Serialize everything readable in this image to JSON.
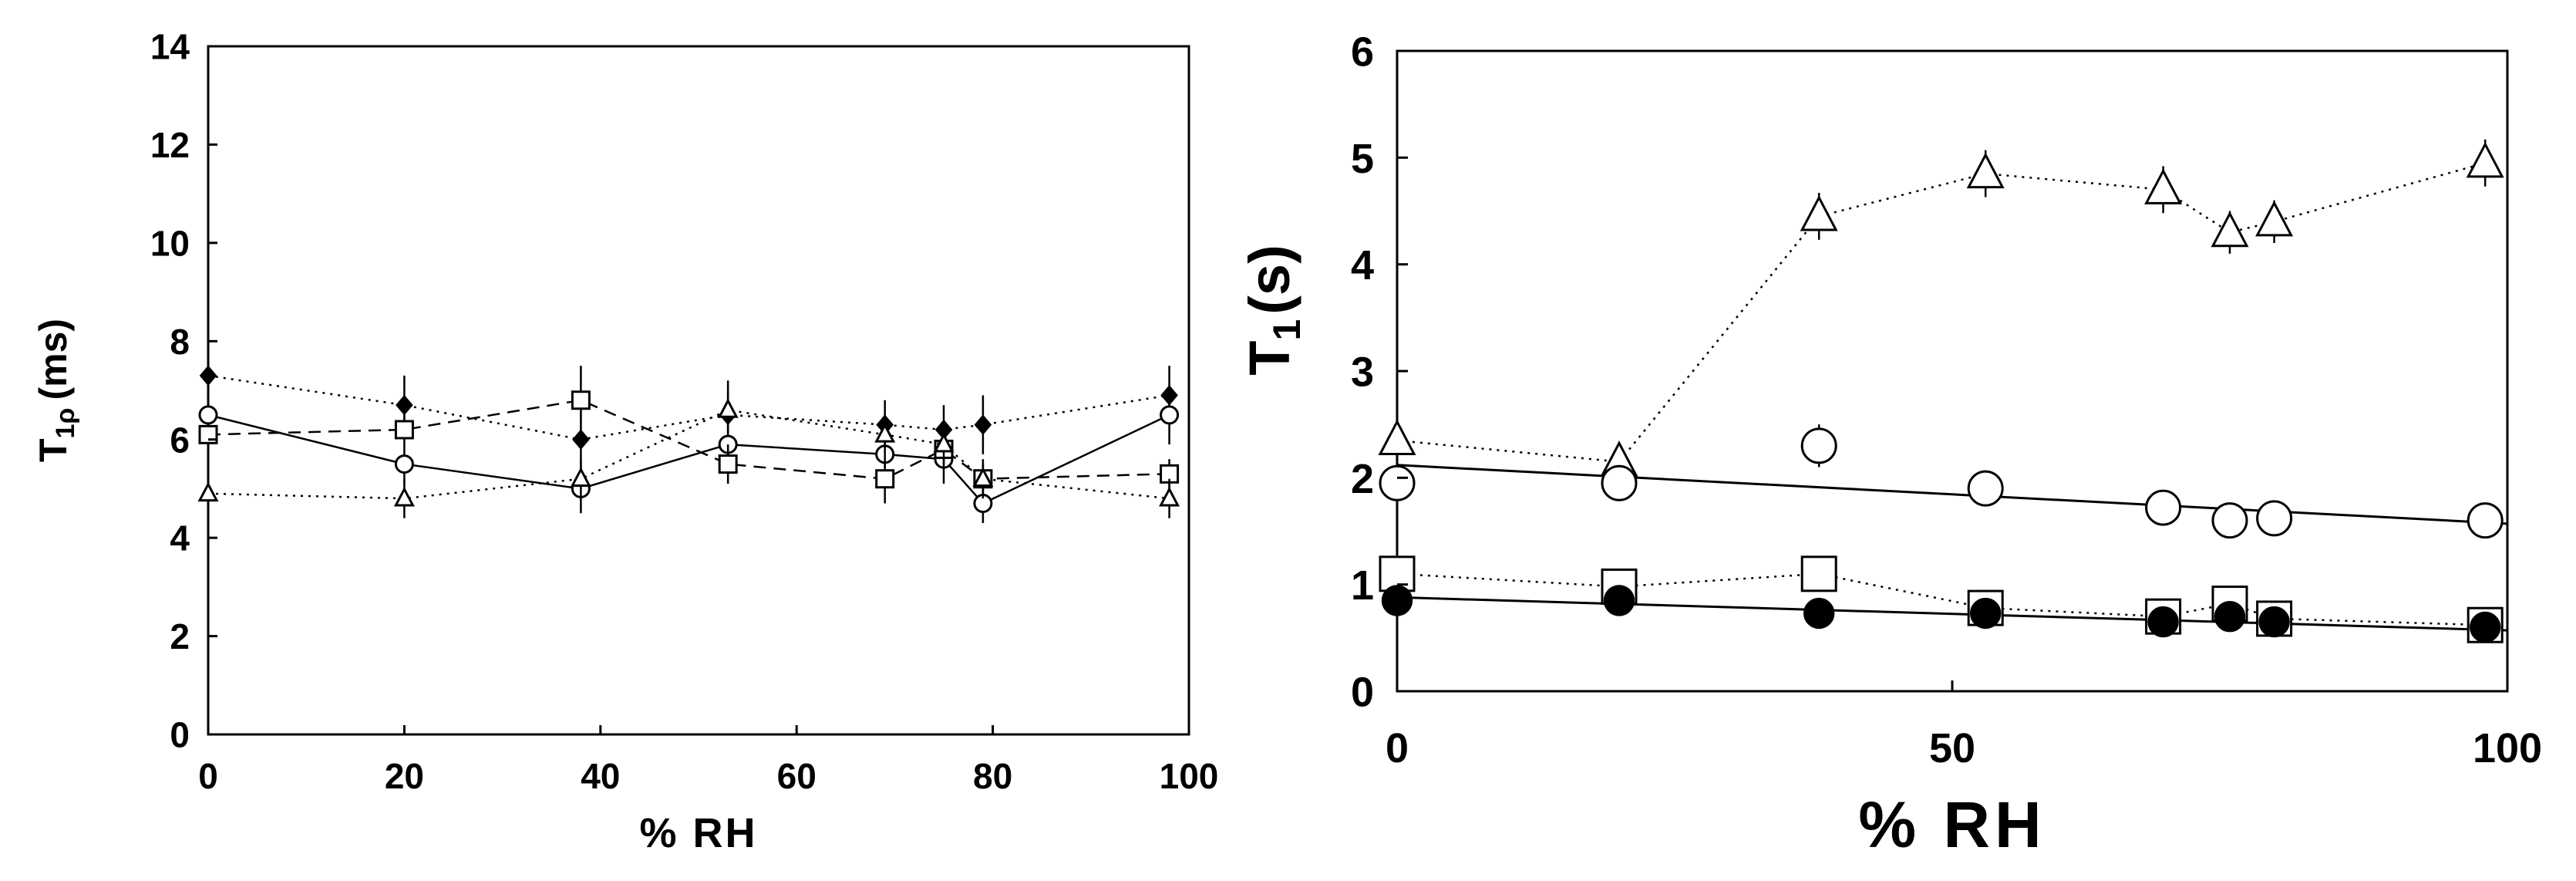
{
  "chart_data": [
    {
      "type": "line",
      "xlabel": "% RH",
      "ylabel": {
        "main": "T",
        "sub": "1ρ",
        "unit": "(ms)"
      },
      "xlim": [
        0,
        100
      ],
      "ylim": [
        0,
        14
      ],
      "xticks": [
        "0",
        "20",
        "40",
        "60",
        "80",
        "100"
      ],
      "yticks": [
        "0",
        "2",
        "4",
        "6",
        "8",
        "10",
        "12",
        "14"
      ],
      "grid": false,
      "series": [
        {
          "marker": "filled-diamond",
          "line": "dotted",
          "x": [
            0,
            20,
            38,
            53,
            69,
            75,
            79,
            98
          ],
          "y": [
            7.3,
            6.7,
            6.0,
            6.5,
            6.3,
            6.2,
            6.3,
            6.9
          ],
          "err": [
            0,
            0.6,
            0.6,
            0.7,
            0.5,
            0.5,
            0.6,
            0.6
          ]
        },
        {
          "marker": "open-circle",
          "line": "solid",
          "x": [
            0,
            20,
            38,
            53,
            69,
            75,
            79,
            98
          ],
          "y": [
            6.5,
            5.5,
            5.0,
            5.9,
            5.7,
            5.6,
            4.7,
            6.5
          ],
          "err": [
            0,
            0.4,
            0.5,
            0.5,
            0.5,
            0.5,
            0.4,
            0.6
          ]
        },
        {
          "marker": "open-square",
          "line": "dashed",
          "x": [
            0,
            20,
            38,
            53,
            69,
            75,
            79,
            98
          ],
          "y": [
            6.1,
            6.2,
            6.8,
            5.5,
            5.2,
            5.8,
            5.2,
            5.3
          ],
          "err": [
            0,
            0.3,
            0.7,
            0.4,
            0.5,
            0.4,
            0.3,
            0.3
          ]
        },
        {
          "marker": "open-triangle",
          "line": "dotted",
          "x": [
            0,
            20,
            38,
            53,
            69,
            75,
            79,
            98
          ],
          "y": [
            4.9,
            4.8,
            5.2,
            6.6,
            6.1,
            5.9,
            5.2,
            4.8
          ],
          "err": [
            0,
            0.4,
            0.4,
            0.4,
            0.4,
            0.4,
            0.4,
            0.4
          ]
        }
      ]
    },
    {
      "type": "scatter",
      "xlabel": "% RH",
      "ylabel": {
        "main": "T",
        "sub": "1",
        "unit": "(s)"
      },
      "xlim": [
        0,
        100
      ],
      "ylim": [
        0,
        6
      ],
      "xticks": [
        "0",
        "50",
        "100"
      ],
      "yticks": [
        "0",
        "1",
        "2",
        "3",
        "4",
        "5",
        "6"
      ],
      "grid": false,
      "series": [
        {
          "marker": "open-triangle",
          "line": "dotted",
          "x": [
            0,
            20,
            38,
            53,
            69,
            75,
            79,
            98
          ],
          "y": [
            2.35,
            2.15,
            4.45,
            4.85,
            4.7,
            4.3,
            4.4,
            4.95
          ],
          "err": [
            0,
            0.15,
            0.22,
            0.22,
            0.22,
            0.2,
            0.2,
            0.22
          ]
        },
        {
          "marker": "open-circle",
          "line": "none",
          "x": [
            0,
            20,
            38,
            53,
            69,
            75,
            79,
            98
          ],
          "y": [
            1.95,
            1.95,
            2.3,
            1.9,
            1.72,
            1.6,
            1.62,
            1.6
          ],
          "err": [
            0,
            0.15,
            0.2,
            0.12,
            0.1,
            0.08,
            0.08,
            0.06
          ]
        },
        {
          "marker": "open-square",
          "line": "dotted",
          "x": [
            0,
            20,
            38,
            53,
            69,
            75,
            79,
            98
          ],
          "y": [
            1.1,
            0.98,
            1.1,
            0.78,
            0.7,
            0.82,
            0.68,
            0.62
          ],
          "err": [
            0,
            0,
            0,
            0,
            0,
            0,
            0,
            0
          ]
        },
        {
          "marker": "filled-circle",
          "line": "none",
          "x": [
            0,
            20,
            38,
            53,
            69,
            75,
            79,
            98
          ],
          "y": [
            0.85,
            0.85,
            0.73,
            0.73,
            0.65,
            0.7,
            0.65,
            0.6
          ],
          "err": [
            0,
            0,
            0,
            0,
            0,
            0,
            0,
            0
          ]
        }
      ],
      "fits": [
        {
          "x": [
            0,
            100
          ],
          "y": [
            2.12,
            1.57
          ]
        },
        {
          "x": [
            0,
            100
          ],
          "y": [
            0.88,
            0.57
          ]
        }
      ]
    }
  ]
}
